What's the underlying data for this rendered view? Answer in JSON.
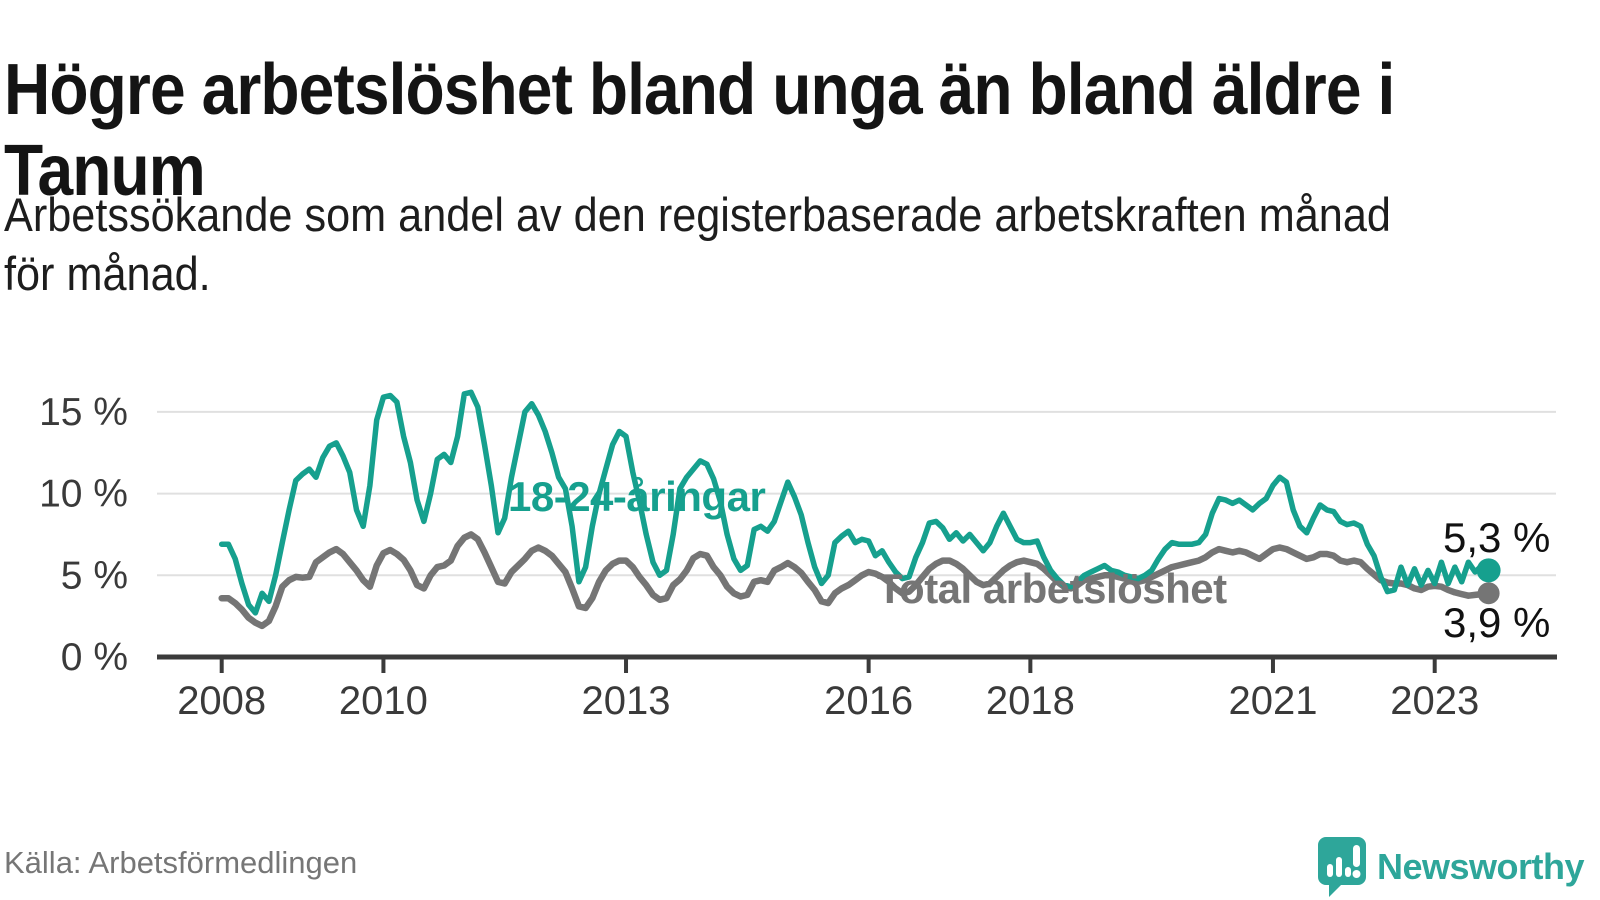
{
  "title": {
    "line1": "Högre arbetslöshet bland unga än bland äldre i",
    "line2": "Tanum"
  },
  "subtitle": {
    "line1": "Arbetssökande som andel av den registerbaserade arbetskraften månad",
    "line2": "för månad."
  },
  "source": "Källa: Arbetsförmedlingen",
  "branding": {
    "name": "Newsworthy",
    "logo_icon": "speech-bubble-bar-chart-icon"
  },
  "colors": {
    "accent_teal": "#16a08e",
    "total_gray": "#757575",
    "grid": "#e0e0e0",
    "axis": "#3b3b3b",
    "tick_label": "#3a3a3a",
    "title_text": "#141414",
    "source_text": "#767676",
    "end_label_text": "#111111",
    "logo_teal": "#2ea69a"
  },
  "chart_data": {
    "type": "line",
    "x_unit": "months",
    "x_start_year": 2008,
    "x_step": 0.0833333,
    "x_domain": [
      2007.2,
      2024.5
    ],
    "y_domain": [
      0,
      16.95
    ],
    "grid": "horizontal-only",
    "legend_position": "inline-labels",
    "x_ticks": [
      2008,
      2010,
      2013,
      2016,
      2018,
      2021,
      2023
    ],
    "y_ticks": [
      {
        "v": 0,
        "label": "0 %"
      },
      {
        "v": 5,
        "label": "5 %"
      },
      {
        "v": 10,
        "label": "10 %"
      },
      {
        "v": 15,
        "label": "15 %"
      }
    ],
    "series": [
      {
        "name": "18-24-åringar",
        "color": "#16a08e",
        "end_label": "5,3 %",
        "end_value": 5.3,
        "values": [
          6.9,
          6.9,
          6.0,
          4.5,
          3.2,
          2.7,
          3.9,
          3.4,
          5.0,
          7.0,
          9.0,
          10.8,
          11.2,
          11.5,
          11.0,
          12.2,
          12.9,
          13.1,
          12.3,
          11.3,
          9.0,
          8.0,
          10.5,
          14.5,
          15.9,
          16.0,
          15.6,
          13.5,
          11.9,
          9.6,
          8.3,
          10.0,
          12.1,
          12.4,
          11.9,
          13.5,
          16.1,
          16.2,
          15.3,
          13.0,
          10.5,
          7.6,
          8.5,
          11.0,
          13.0,
          15.0,
          15.5,
          14.8,
          13.8,
          12.5,
          11.0,
          10.3,
          8.0,
          4.6,
          5.5,
          8.0,
          10.0,
          11.5,
          13.0,
          13.8,
          13.5,
          11.3,
          9.5,
          7.5,
          5.8,
          5.0,
          5.3,
          7.5,
          10.3,
          11.0,
          11.5,
          12.0,
          11.8,
          10.9,
          9.5,
          7.5,
          6.0,
          5.3,
          5.6,
          7.8,
          8.0,
          7.7,
          8.3,
          9.5,
          10.7,
          9.8,
          8.7,
          7.0,
          5.5,
          4.5,
          5.0,
          7.0,
          7.4,
          7.7,
          7.0,
          7.2,
          7.1,
          6.2,
          6.5,
          5.8,
          5.2,
          4.8,
          4.9,
          6.1,
          7.0,
          8.2,
          8.3,
          7.9,
          7.2,
          7.6,
          7.1,
          7.5,
          7.0,
          6.5,
          7.0,
          8.0,
          8.8,
          8.0,
          7.2,
          7.0,
          7.0,
          7.1,
          6.1,
          5.3,
          4.8,
          4.4,
          4.3,
          4.6,
          5.0,
          5.2,
          5.4,
          5.6,
          5.3,
          5.2,
          5.0,
          4.9,
          4.8,
          5.0,
          5.3,
          6.0,
          6.6,
          7.0,
          6.9,
          6.9,
          6.9,
          7.0,
          7.5,
          8.8,
          9.7,
          9.6,
          9.4,
          9.6,
          9.3,
          9.0,
          9.4,
          9.7,
          10.5,
          11.0,
          10.7,
          9.0,
          8.0,
          7.6,
          8.5,
          9.3,
          9.0,
          8.9,
          8.3,
          8.1,
          8.2,
          8.0,
          6.9,
          6.2,
          4.9,
          4.0,
          4.1,
          5.5,
          4.4,
          5.4,
          4.4,
          5.3,
          4.5,
          5.8,
          4.5,
          5.5,
          4.6,
          5.8,
          5.2,
          5.6,
          5.3
        ]
      },
      {
        "name": "Total arbetslöshet",
        "color": "#757575",
        "end_label": "3,9 %",
        "end_value": 3.9,
        "values": [
          3.6,
          3.6,
          3.3,
          2.9,
          2.4,
          2.1,
          1.9,
          2.2,
          3.1,
          4.3,
          4.7,
          4.9,
          4.85,
          4.9,
          5.8,
          6.1,
          6.4,
          6.6,
          6.3,
          5.8,
          5.3,
          4.7,
          4.3,
          5.6,
          6.35,
          6.55,
          6.3,
          5.95,
          5.3,
          4.4,
          4.2,
          5.0,
          5.5,
          5.6,
          5.9,
          6.8,
          7.3,
          7.5,
          7.2,
          6.4,
          5.5,
          4.6,
          4.5,
          5.2,
          5.6,
          6.0,
          6.5,
          6.7,
          6.5,
          6.2,
          5.7,
          5.2,
          4.2,
          3.1,
          3.0,
          3.6,
          4.6,
          5.3,
          5.7,
          5.9,
          5.9,
          5.5,
          4.9,
          4.4,
          3.8,
          3.5,
          3.6,
          4.4,
          4.75,
          5.3,
          6.05,
          6.3,
          6.2,
          5.5,
          5.0,
          4.3,
          3.9,
          3.7,
          3.8,
          4.6,
          4.7,
          4.6,
          5.3,
          5.5,
          5.75,
          5.5,
          5.15,
          4.6,
          4.1,
          3.4,
          3.3,
          3.9,
          4.2,
          4.4,
          4.7,
          5.0,
          5.2,
          5.1,
          4.9,
          4.6,
          4.2,
          3.9,
          4.0,
          4.4,
          4.9,
          5.4,
          5.7,
          5.9,
          5.9,
          5.7,
          5.4,
          5.0,
          4.6,
          4.4,
          4.5,
          4.9,
          5.3,
          5.6,
          5.8,
          5.9,
          5.8,
          5.7,
          5.4,
          5.0,
          4.6,
          4.3,
          4.2,
          4.4,
          4.7,
          4.8,
          4.9,
          5.0,
          5.0,
          4.9,
          4.8,
          4.7,
          4.6,
          4.7,
          4.9,
          5.1,
          5.3,
          5.5,
          5.6,
          5.7,
          5.8,
          5.9,
          6.1,
          6.4,
          6.6,
          6.5,
          6.4,
          6.5,
          6.4,
          6.2,
          6.0,
          6.3,
          6.6,
          6.7,
          6.6,
          6.4,
          6.2,
          6.0,
          6.1,
          6.3,
          6.3,
          6.2,
          5.9,
          5.8,
          5.9,
          5.8,
          5.4,
          5.05,
          4.7,
          4.55,
          4.5,
          4.5,
          4.4,
          4.2,
          4.1,
          4.3,
          4.35,
          4.3,
          4.1,
          3.95,
          3.85,
          3.75,
          3.8,
          3.85,
          3.9
        ]
      }
    ]
  }
}
